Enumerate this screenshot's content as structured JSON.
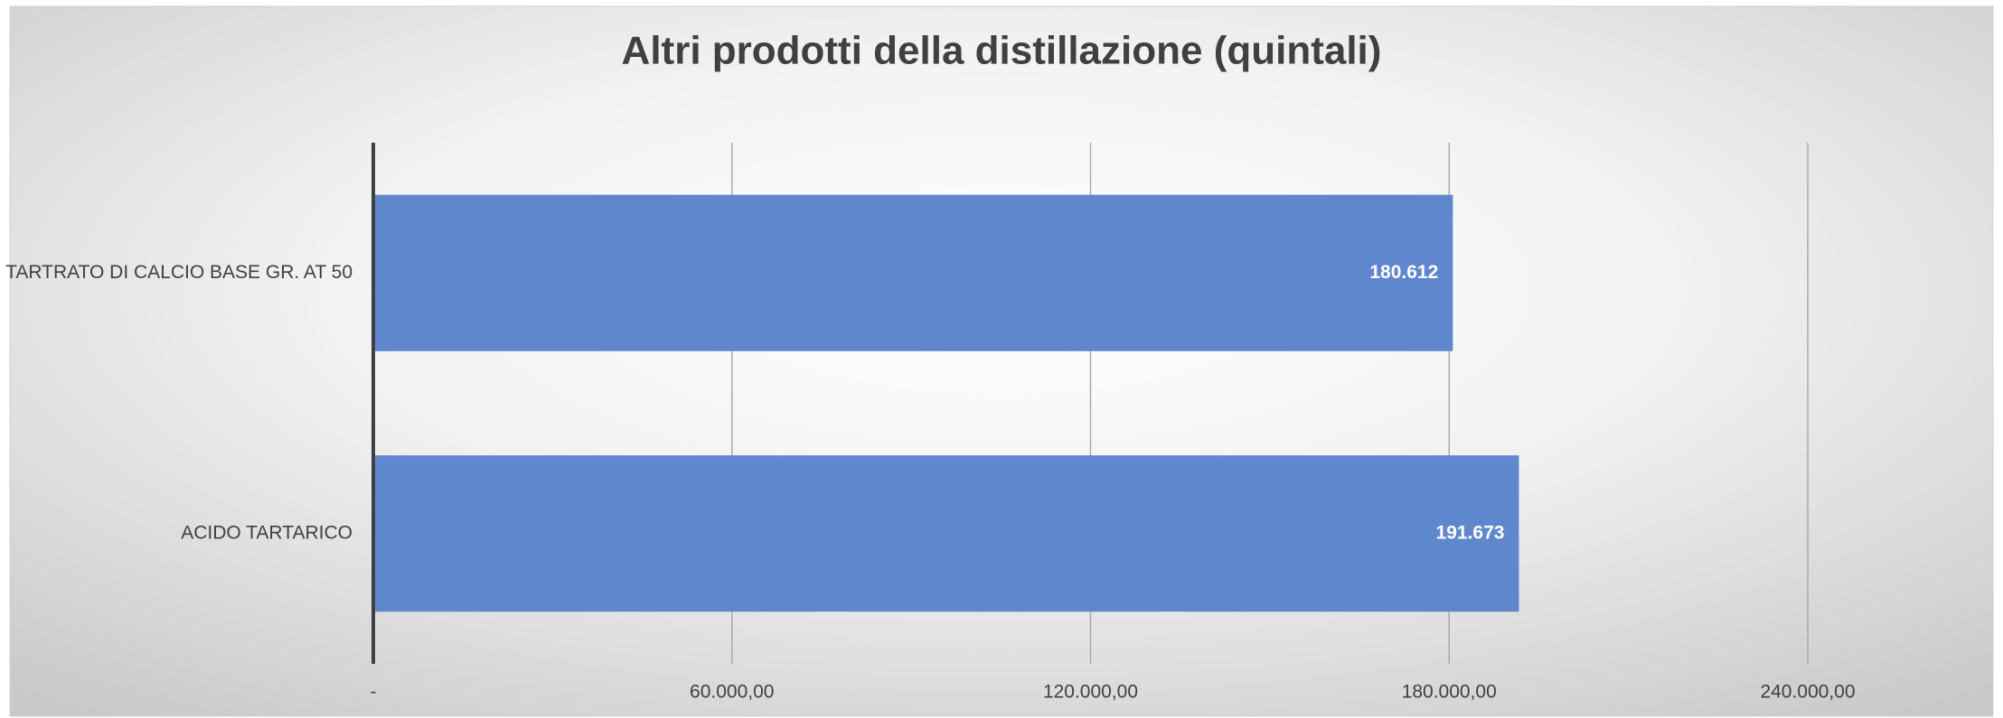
{
  "chart_data": {
    "type": "barh",
    "title": "Altri prodotti della distillazione (quintali)",
    "categories": [
      "TARTRATO DI CALCIO BASE GR. AT 50",
      "ACIDO TARTARICO"
    ],
    "values": [
      180612,
      191673
    ],
    "value_labels": [
      "180.612",
      "191.673"
    ],
    "color": "#5f87cd",
    "xlim": [
      0,
      240000
    ],
    "xticks": [
      {
        "value": 0,
        "label": "-"
      },
      {
        "value": 60000,
        "label": "60.000,00"
      },
      {
        "value": 120000,
        "label": "120.000,00"
      },
      {
        "value": 180000,
        "label": "180.000,00"
      },
      {
        "value": 240000,
        "label": "240.000,00"
      }
    ],
    "grid": true
  }
}
